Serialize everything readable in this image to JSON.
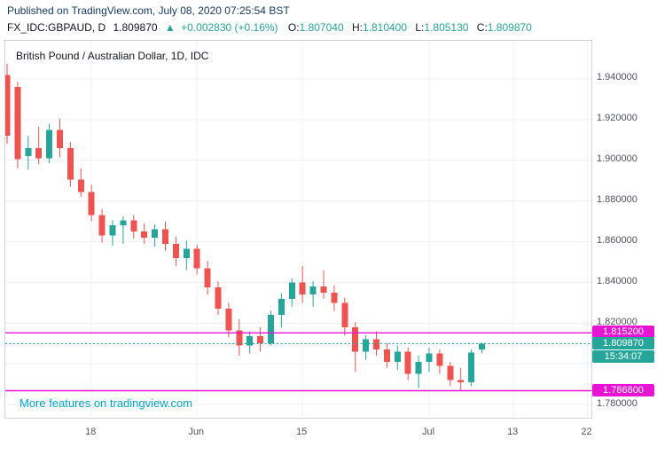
{
  "header": {
    "published_text": "Published on TradingView.com, July 08, 2020 07:25:54 BST"
  },
  "symbol_bar": {
    "symbol_text": "FX_IDC:GBPAUD, D",
    "last_price": "1.809870",
    "arrow": "▲",
    "change_text": "+0.002830 (+0.16%)",
    "ohlc": {
      "o_label": "O:",
      "o": "1.807040",
      "h_label": "H:",
      "h": "1.810400",
      "l_label": "L:",
      "l": "1.805130",
      "c_label": "C:",
      "c": "1.809870"
    }
  },
  "watermark_text": "More features on tradingview.com",
  "colors": {
    "up": "#26a69a",
    "down": "#ef5350",
    "level": "#e814d4",
    "grid": "#eef1f6",
    "border": "#d1d4dc",
    "axis_text": "#50535e",
    "text": "#131722",
    "published": "#16395f",
    "watermark": "#00a6c9"
  },
  "chart_data": {
    "type": "candlestick",
    "title": "British Pound / Australian Dollar, 1D, IDC",
    "symbol": "GBPAUD",
    "interval": "1D",
    "dates": [
      "May 6",
      "May 7",
      "May 8",
      "May 11",
      "May 12",
      "May 13",
      "May 14",
      "May 15",
      "May 18",
      "May 19",
      "May 20",
      "May 21",
      "May 22",
      "May 25",
      "May 26",
      "May 27",
      "May 28",
      "May 29",
      "Jun 1",
      "Jun 2",
      "Jun 3",
      "Jun 4",
      "Jun 5",
      "Jun 8",
      "Jun 9",
      "Jun 10",
      "Jun 11",
      "Jun 12",
      "Jun 15",
      "Jun 16",
      "Jun 17",
      "Jun 18",
      "Jun 19",
      "Jun 22",
      "Jun 23",
      "Jun 24",
      "Jun 25",
      "Jun 26",
      "Jun 29",
      "Jun 30",
      "Jul 1",
      "Jul 2",
      "Jul 3",
      "Jul 6",
      "Jul 7",
      "Jul 8"
    ],
    "candles": [
      [
        1.942,
        1.9475,
        1.908,
        1.912
      ],
      [
        1.936,
        1.9385,
        1.896,
        1.9005
      ],
      [
        1.902,
        1.912,
        1.8955,
        1.906
      ],
      [
        1.906,
        1.9165,
        1.898,
        1.901
      ],
      [
        1.901,
        1.918,
        1.8985,
        1.915
      ],
      [
        1.915,
        1.9205,
        1.9015,
        1.906
      ],
      [
        1.906,
        1.909,
        1.887,
        1.8905
      ],
      [
        1.8905,
        1.896,
        1.882,
        1.8845
      ],
      [
        1.8845,
        1.888,
        1.87,
        1.873
      ],
      [
        1.873,
        1.876,
        1.8595,
        1.863
      ],
      [
        1.863,
        1.8705,
        1.858,
        1.868
      ],
      [
        1.868,
        1.8725,
        1.859,
        1.8705
      ],
      [
        1.8705,
        1.873,
        1.8615,
        1.865
      ],
      [
        1.865,
        1.869,
        1.859,
        1.862
      ],
      [
        1.862,
        1.8685,
        1.8575,
        1.866
      ],
      [
        1.866,
        1.87,
        1.8555,
        1.859
      ],
      [
        1.859,
        1.8625,
        1.848,
        1.852
      ],
      [
        1.852,
        1.8605,
        1.846,
        1.8565
      ],
      [
        1.8565,
        1.8585,
        1.844,
        1.847
      ],
      [
        1.847,
        1.8505,
        1.834,
        1.8375
      ],
      [
        1.8375,
        1.8405,
        1.824,
        1.827
      ],
      [
        1.827,
        1.83,
        1.813,
        1.8165
      ],
      [
        1.8165,
        1.822,
        1.804,
        1.809
      ],
      [
        1.809,
        1.816,
        1.805,
        1.8135
      ],
      [
        1.8135,
        1.818,
        1.806,
        1.81
      ],
      [
        1.81,
        1.826,
        1.809,
        1.824
      ],
      [
        1.824,
        1.8345,
        1.818,
        1.832
      ],
      [
        1.832,
        1.842,
        1.828,
        1.84
      ],
      [
        1.84,
        1.848,
        1.83,
        1.834
      ],
      [
        1.834,
        1.8405,
        1.828,
        1.838
      ],
      [
        1.838,
        1.846,
        1.832,
        1.835
      ],
      [
        1.835,
        1.8385,
        1.826,
        1.83
      ],
      [
        1.83,
        1.8325,
        1.814,
        1.818
      ],
      [
        1.818,
        1.8205,
        1.796,
        1.806
      ],
      [
        1.806,
        1.814,
        1.802,
        1.812
      ],
      [
        1.812,
        1.816,
        1.804,
        1.807
      ],
      [
        1.807,
        1.81,
        1.798,
        1.801
      ],
      [
        1.801,
        1.809,
        1.797,
        1.806
      ],
      [
        1.806,
        1.808,
        1.792,
        1.795
      ],
      [
        1.795,
        1.804,
        1.788,
        1.801
      ],
      [
        1.801,
        1.808,
        1.796,
        1.805
      ],
      [
        1.805,
        1.807,
        1.795,
        1.799
      ],
      [
        1.799,
        1.801,
        1.789,
        1.792
      ],
      [
        1.792,
        1.798,
        1.7868,
        1.791
      ],
      [
        1.791,
        1.807,
        1.789,
        1.8055
      ],
      [
        1.80704,
        1.8104,
        1.80513,
        1.80987
      ]
    ],
    "y_axis": {
      "ticks": [
        1.94,
        1.92,
        1.9,
        1.88,
        1.86,
        1.84,
        1.82,
        1.8,
        1.78
      ],
      "price_min": 1.7735,
      "price_max": 1.9587,
      "decimals": 6
    },
    "x_axis": {
      "labels": [
        {
          "text": "18",
          "index": 8
        },
        {
          "text": "Jun",
          "index": 18
        },
        {
          "text": "15",
          "index": 28
        },
        {
          "text": "Jul",
          "index": 40
        },
        {
          "text": "13",
          "index": 48
        },
        {
          "text": "22",
          "index": 55
        }
      ]
    },
    "levels": [
      {
        "price": 1.8152,
        "label": "1.815200"
      },
      {
        "price": 1.7868,
        "label": "1.786800"
      }
    ],
    "current": {
      "price": 1.80987,
      "label": "1.809870"
    },
    "countdown": "15:34:07"
  }
}
